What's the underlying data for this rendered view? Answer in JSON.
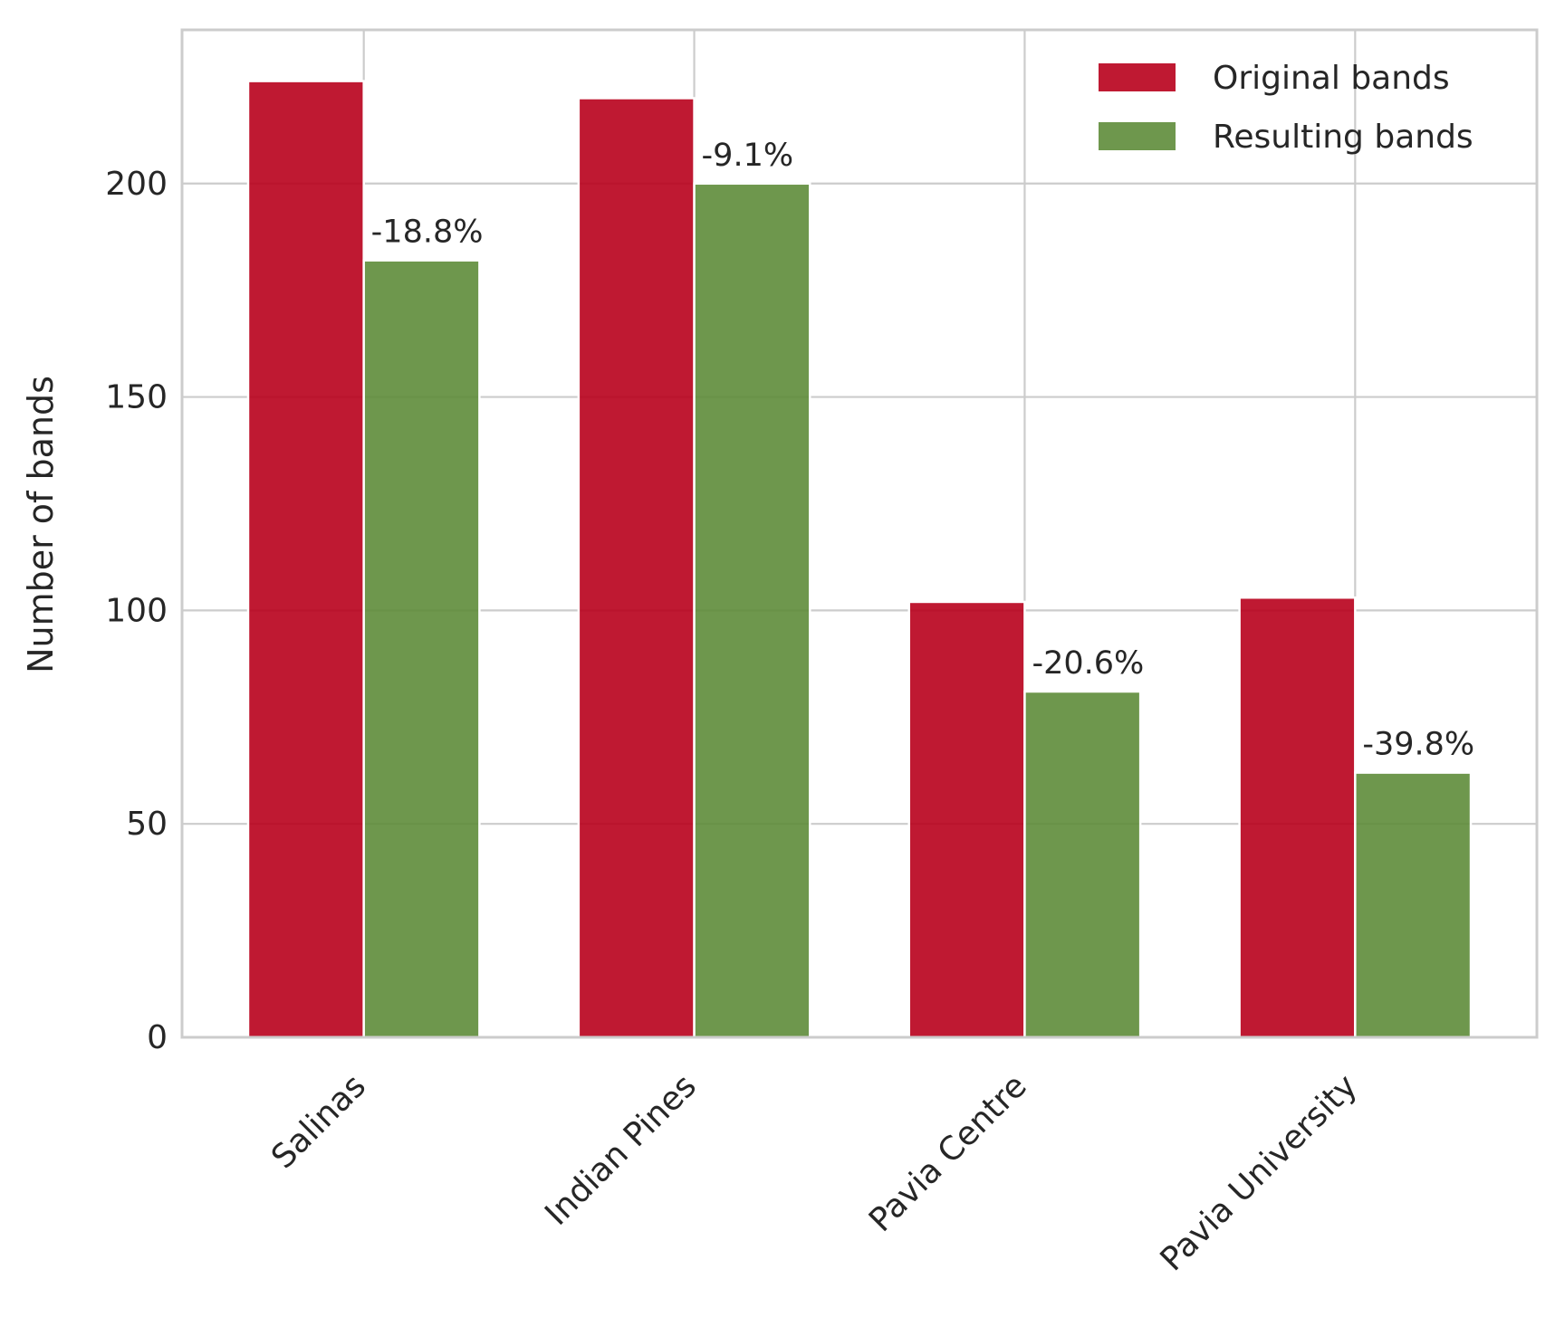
{
  "chart_data": {
    "type": "bar",
    "title": "",
    "xlabel": "",
    "ylabel": "Number of bands",
    "categories": [
      "Salinas",
      "Indian Pines",
      "Pavia Centre",
      "Pavia University"
    ],
    "series": [
      {
        "name": "Original bands",
        "values": [
          224,
          220,
          102,
          103
        ],
        "color": "#b8001c"
      },
      {
        "name": "Resulting bands",
        "values": [
          182,
          200,
          81,
          62
        ],
        "color": "#5e8c3a"
      }
    ],
    "annotations": [
      "-18.8%",
      "-9.1%",
      "-20.6%",
      "-39.8%"
    ],
    "ylim": [
      0,
      236
    ],
    "yticks": [
      0,
      50,
      100,
      150,
      200
    ],
    "grid": true,
    "legend_position": "top-right",
    "xtick_rotation": 45
  }
}
